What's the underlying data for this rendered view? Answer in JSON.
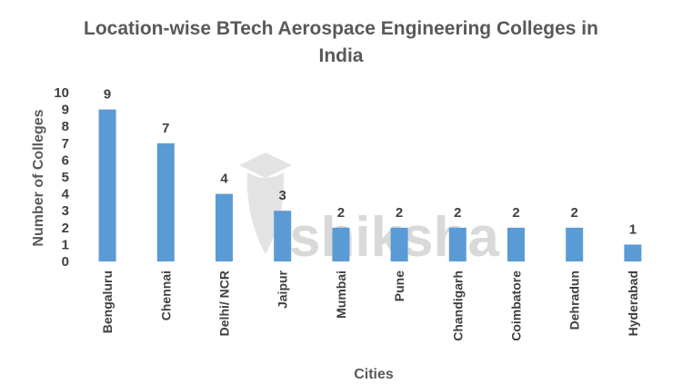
{
  "chart_data": {
    "type": "bar",
    "title_line1": "Location-wise BTech Aerospace Engineering Colleges in",
    "title_line2": "India",
    "xlabel": "Cities",
    "ylabel": "Number of Colleges",
    "categories": [
      "Bengaluru",
      "Chennai",
      "Delhi/ NCR",
      "Jaipur",
      "Mumbai",
      "Pune",
      "Chandigarh",
      "Coimbatore",
      "Dehradun",
      "Hyderabad"
    ],
    "values": [
      9,
      7,
      4,
      3,
      2,
      2,
      2,
      2,
      2,
      1
    ],
    "ylim": [
      0,
      10
    ],
    "yticks": [
      0,
      1,
      2,
      3,
      4,
      5,
      6,
      7,
      8,
      9,
      10
    ],
    "bar_color": "#5B9BD5",
    "grid": false,
    "legend": "none"
  },
  "watermark": {
    "text": "shiksha"
  }
}
